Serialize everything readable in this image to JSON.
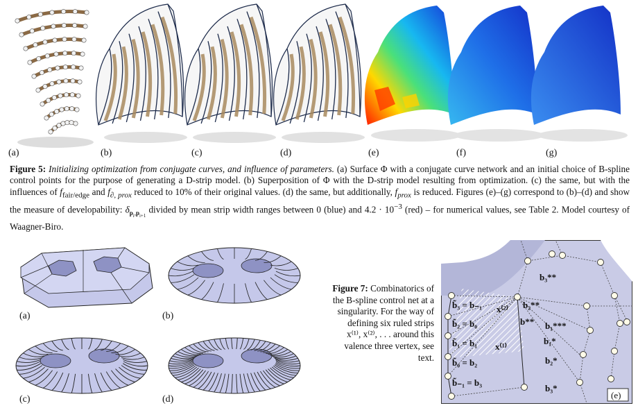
{
  "figure5": {
    "panel_labels": [
      "(a)",
      "(b)",
      "(c)",
      "(d)",
      "(e)",
      "(f)",
      "(g)"
    ],
    "caption_label": "Figure 5:",
    "caption_title": "Initializing optimization from conjugate curves, and influence of parameters.",
    "caption_p1": " (a) Surface Φ with a conjugate curve network and an initial choice of B-spline control points for the purpose of generating a D-strip model. (b) Superposition of Φ with the D-strip model resulting from optimization. (c) the same, but with the influences of ",
    "f_fair_edge": "f",
    "f_fair_edge_sub": "fair/edge",
    "and_text": " and ",
    "f_boundary_prox": "f",
    "f_boundary_prox_sub": "∂, prox",
    "caption_p2": " reduced to 10% of their original values. (d) the same, but additionally, ",
    "f_prox": "f",
    "f_prox_sub": "prox",
    "caption_p3": " is reduced. Figures (e)–(g) correspond to (b)–(d) and show the measure of developability: ",
    "delta_symbol": "δ",
    "delta_sub": "p",
    "caption_p4": " divided by mean strip width ranges between 0 (blue) and 4.2 · 10",
    "exponent": "−3",
    "caption_p5": " (red) – for numerical values, see Table 2. Model courtesy of Waagner-Biro."
  },
  "figure6_panels": [
    "(a)",
    "(b)",
    "(c)",
    "(d)"
  ],
  "figure7": {
    "caption_label": "Figure 7:",
    "caption_text": " Combinatorics of the B-spline control net at a singularity. For the way of defining six ruled strips x⁽¹⁾, x⁽²⁾, . . . around this valence three vertex, see text."
  },
  "figure7_panel": {
    "label": "(e)",
    "labels": {
      "b3ss": "b₃**",
      "b2ss": "b₂**",
      "bss": "b**",
      "b1sss": "b₁***",
      "b1s": "b₁*",
      "b2s": "b₂*",
      "b3s": "b₃*",
      "x2": "x⁽²⁾",
      "x1": "x⁽¹⁾",
      "eq1": "b̃₃ = b₋₁",
      "eq2": "b̃₂ = b₀",
      "eq3": "b̃₁ = b₁",
      "eq4": "b̃₀ = b₂",
      "eq5": "b̃₋₁ = b₃"
    }
  },
  "colors": {
    "surface_blue": "#b9bde2",
    "strip_brown": "#a8895e",
    "curve_dark": "#1c2a4a",
    "heat_low": "#1a3bd6",
    "heat_high": "#d41c1c"
  }
}
